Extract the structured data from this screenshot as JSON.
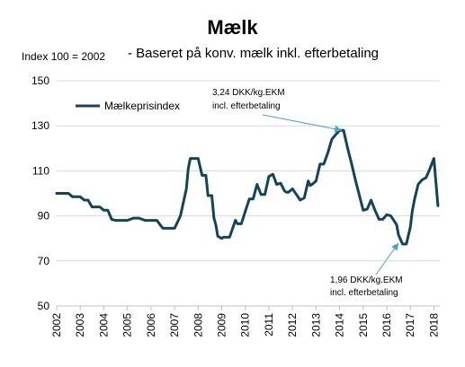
{
  "chart_data": {
    "type": "line",
    "title": "Mælk",
    "subtitle": "- Baseret på konv. mælk inkl. efterbetaling",
    "index_note": "Index 100 = 2002",
    "xlabel": "",
    "ylabel": "",
    "ylim": [
      50,
      150
    ],
    "xlim": [
      2002,
      2018.25
    ],
    "y_ticks": [
      50,
      70,
      90,
      110,
      130,
      150
    ],
    "x_ticks": [
      "2002",
      "2003",
      "2004",
      "2005",
      "2006",
      "2007",
      "2008",
      "2009",
      "2010",
      "2011",
      "2012",
      "2013",
      "2014",
      "2015",
      "2016",
      "2017",
      "2018"
    ],
    "grid": "horizontal",
    "legend_position": "top-left",
    "colors": {
      "series": "#12445c",
      "grid": "#d9d9d9",
      "annotation_arrow": "#4aa3c7"
    },
    "series": [
      {
        "name": "Mælkeprisindex",
        "x": [
          2002.0,
          2002.17,
          2002.33,
          2002.5,
          2002.67,
          2002.83,
          2003.0,
          2003.17,
          2003.33,
          2003.5,
          2003.67,
          2003.83,
          2004.0,
          2004.17,
          2004.33,
          2004.5,
          2004.67,
          2004.83,
          2005.0,
          2005.25,
          2005.5,
          2005.75,
          2006.0,
          2006.25,
          2006.5,
          2006.75,
          2007.0,
          2007.25,
          2007.5,
          2007.58,
          2007.67,
          2007.75,
          2007.83,
          2007.92,
          2008.0,
          2008.17,
          2008.33,
          2008.42,
          2008.5,
          2008.58,
          2008.67,
          2008.75,
          2008.83,
          2009.0,
          2009.08,
          2009.17,
          2009.33,
          2009.5,
          2009.58,
          2009.67,
          2009.75,
          2009.83,
          2010.0,
          2010.17,
          2010.33,
          2010.5,
          2010.67,
          2010.75,
          2010.83,
          2011.0,
          2011.17,
          2011.33,
          2011.5,
          2011.67,
          2011.75,
          2011.83,
          2012.0,
          2012.17,
          2012.33,
          2012.5,
          2012.67,
          2012.75,
          2012.83,
          2013.0,
          2013.17,
          2013.33,
          2013.5,
          2013.67,
          2013.83,
          2014.0,
          2014.08,
          2014.17,
          2014.33,
          2014.5,
          2014.67,
          2014.83,
          2015.0,
          2015.17,
          2015.33,
          2015.5,
          2015.67,
          2015.83,
          2016.0,
          2016.17,
          2016.33,
          2016.42,
          2016.5,
          2016.67,
          2016.83,
          2017.0,
          2017.08,
          2017.17,
          2017.33,
          2017.5,
          2017.67,
          2017.83,
          2018.0,
          2018.17
        ],
        "values": [
          100,
          100,
          100,
          100,
          98.5,
          98.5,
          98.5,
          97,
          97,
          94,
          94,
          94,
          92.5,
          92.5,
          88.5,
          88,
          88,
          88,
          88,
          89,
          89,
          88,
          88,
          88,
          84.5,
          84.5,
          84.5,
          90,
          102,
          111,
          115.5,
          115.5,
          115.5,
          115.5,
          115.5,
          108,
          108,
          99,
          99,
          99,
          89,
          86,
          81,
          80,
          80.5,
          80.5,
          80.5,
          85.5,
          88,
          86.5,
          86.5,
          86.5,
          92,
          97.5,
          97.5,
          104,
          99.5,
          99.5,
          99.5,
          107.5,
          108.5,
          104,
          104.5,
          101,
          100.5,
          100.5,
          102,
          99.5,
          97,
          98,
          105.5,
          103.5,
          104,
          105.5,
          113,
          113,
          118,
          124,
          126,
          128,
          128,
          128,
          120.5,
          113.5,
          106,
          99.5,
          92.5,
          93,
          97,
          92.5,
          88.5,
          88.5,
          90.5,
          90,
          87.5,
          86,
          81.5,
          77.5,
          77.5,
          85,
          92,
          97,
          104,
          106,
          107,
          111,
          115.5,
          94.5
        ]
      }
    ],
    "annotations": [
      {
        "text_line1": "3,24 DKK/kg.EKM",
        "text_line2": "incl. efterbetaling",
        "points_to": [
          2014.1,
          128
        ]
      },
      {
        "text_line1": "1,96 DKK/kg.EKM",
        "text_line2": "incl. efterbetaling",
        "points_to": [
          2016.5,
          78
        ]
      }
    ]
  }
}
